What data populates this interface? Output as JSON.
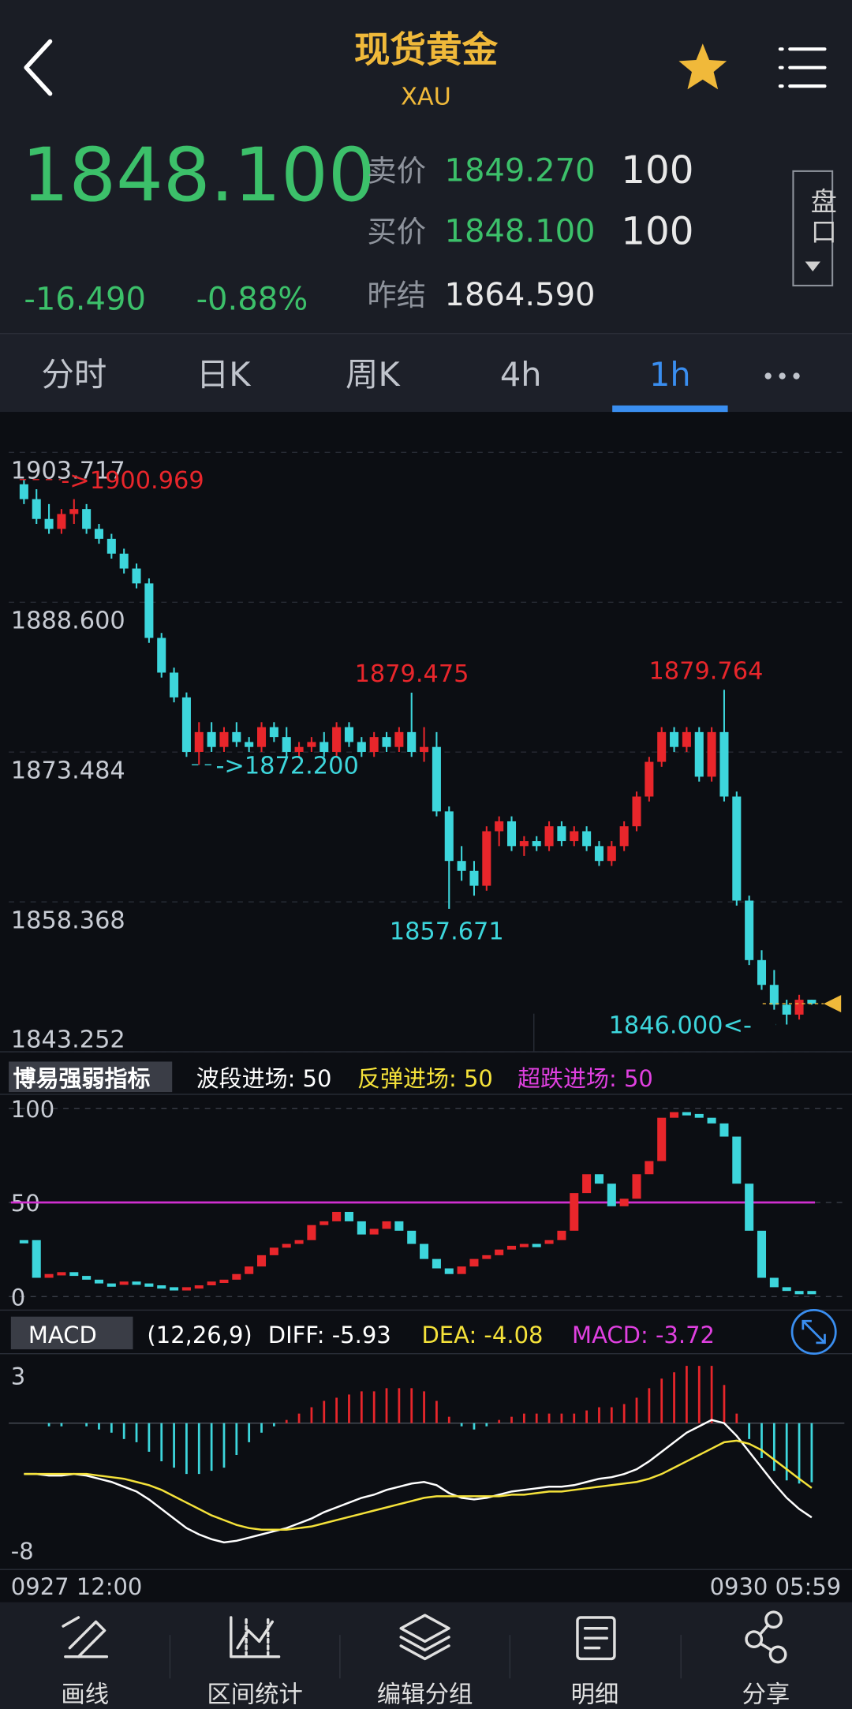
{
  "header": {
    "title": "现货黄金",
    "symbol": "XAU"
  },
  "quote": {
    "price": "1848.100",
    "change": "-16.490",
    "change_pct": "-0.88%",
    "sell_label": "卖价",
    "sell_price": "1849.270",
    "sell_qty": "100",
    "buy_label": "买价",
    "buy_price": "1848.100",
    "buy_qty": "100",
    "prev_label": "昨结",
    "prev_close": "1864.590",
    "panel_button": "盘口"
  },
  "tabs": {
    "items": [
      "分时",
      "日K",
      "周K",
      "4h",
      "1h"
    ],
    "active": 4
  },
  "chart_data": [
    {
      "type": "candlestick",
      "up_color": "#e8262b",
      "down_color": "#3dd6dc",
      "grid": true,
      "ylim": [
        1843.252,
        1907.57
      ],
      "yticks": [
        1903.717,
        {
          "value": 1888.6,
          "label": "1888.600"
        },
        1873.484,
        1858.368,
        1843.252
      ],
      "candles": [
        [
          1900.5,
          1901.0,
          1898.5,
          1899.0
        ],
        [
          1899.0,
          1900.0,
          1896.5,
          1897.0
        ],
        [
          1897.0,
          1898.5,
          1895.5,
          1896.0
        ],
        [
          1896.0,
          1898.0,
          1895.5,
          1897.5
        ],
        [
          1897.5,
          1899.0,
          1896.5,
          1898.0
        ],
        [
          1898.0,
          1898.5,
          1895.5,
          1896.0
        ],
        [
          1896.0,
          1896.5,
          1894.5,
          1895.0
        ],
        [
          1895.0,
          1895.5,
          1893.0,
          1893.5
        ],
        [
          1893.5,
          1894.0,
          1891.5,
          1892.0
        ],
        [
          1892.0,
          1892.5,
          1890.0,
          1890.5
        ],
        [
          1890.5,
          1891.0,
          1884.5,
          1885.0
        ],
        [
          1885.0,
          1885.5,
          1881.0,
          1881.5
        ],
        [
          1881.5,
          1882.0,
          1878.5,
          1879.0
        ],
        [
          1879.0,
          1879.5,
          1873.0,
          1873.5
        ],
        [
          1873.5,
          1876.5,
          1872.2,
          1875.5
        ],
        [
          1875.5,
          1876.5,
          1873.5,
          1874.0
        ],
        [
          1874.0,
          1876.0,
          1873.5,
          1875.5
        ],
        [
          1875.5,
          1876.5,
          1874.0,
          1874.5
        ],
        [
          1874.5,
          1875.0,
          1873.5,
          1874.0
        ],
        [
          1874.0,
          1876.5,
          1873.5,
          1876.0
        ],
        [
          1876.0,
          1876.5,
          1874.5,
          1875.0
        ],
        [
          1875.0,
          1876.0,
          1873.0,
          1873.5
        ],
        [
          1873.5,
          1874.5,
          1873.0,
          1874.0
        ],
        [
          1874.0,
          1875.0,
          1873.5,
          1874.5
        ],
        [
          1874.5,
          1875.5,
          1873.0,
          1873.5
        ],
        [
          1873.5,
          1876.5,
          1873.0,
          1876.0
        ],
        [
          1876.0,
          1876.5,
          1874.0,
          1874.5
        ],
        [
          1874.5,
          1875.0,
          1873.0,
          1873.5
        ],
        [
          1873.5,
          1875.5,
          1873.0,
          1875.0
        ],
        [
          1875.0,
          1875.5,
          1873.5,
          1874.0
        ],
        [
          1874.0,
          1876.0,
          1873.5,
          1875.5
        ],
        [
          1875.5,
          1879.475,
          1873.0,
          1873.5
        ],
        [
          1873.5,
          1876.0,
          1872.5,
          1874.0
        ],
        [
          1874.0,
          1875.5,
          1867.0,
          1867.5
        ],
        [
          1867.5,
          1868.0,
          1857.671,
          1862.5
        ],
        [
          1862.5,
          1864.0,
          1860.5,
          1861.5
        ],
        [
          1861.5,
          1862.5,
          1859.0,
          1860.0
        ],
        [
          1860.0,
          1866.0,
          1859.5,
          1865.5
        ],
        [
          1865.5,
          1867.0,
          1864.0,
          1866.5
        ],
        [
          1866.5,
          1867.0,
          1863.5,
          1864.0
        ],
        [
          1864.0,
          1865.0,
          1863.0,
          1864.5
        ],
        [
          1864.5,
          1865.0,
          1863.5,
          1864.0
        ],
        [
          1864.0,
          1866.5,
          1863.5,
          1866.0
        ],
        [
          1866.0,
          1866.5,
          1864.0,
          1864.5
        ],
        [
          1864.5,
          1866.0,
          1864.0,
          1865.5
        ],
        [
          1865.5,
          1866.0,
          1863.5,
          1864.0
        ],
        [
          1864.0,
          1864.5,
          1862.0,
          1862.5
        ],
        [
          1862.5,
          1864.5,
          1862.0,
          1864.0
        ],
        [
          1864.0,
          1866.5,
          1863.5,
          1866.0
        ],
        [
          1866.0,
          1869.5,
          1865.5,
          1869.0
        ],
        [
          1869.0,
          1873.0,
          1868.5,
          1872.5
        ],
        [
          1872.5,
          1876.0,
          1872.0,
          1875.5
        ],
        [
          1875.5,
          1876.0,
          1873.5,
          1874.0
        ],
        [
          1874.0,
          1876.0,
          1873.5,
          1875.5
        ],
        [
          1875.5,
          1876.0,
          1870.5,
          1871.0
        ],
        [
          1871.0,
          1876.0,
          1870.5,
          1875.5
        ],
        [
          1875.5,
          1879.764,
          1868.5,
          1869.0
        ],
        [
          1869.0,
          1869.5,
          1858.0,
          1858.5
        ],
        [
          1858.5,
          1859.0,
          1852.0,
          1852.5
        ],
        [
          1852.5,
          1853.5,
          1849.5,
          1850.0
        ],
        [
          1850.0,
          1851.5,
          1847.5,
          1848.0
        ],
        [
          1848.0,
          1848.5,
          1846.0,
          1847.0
        ],
        [
          1847.0,
          1849.0,
          1846.5,
          1848.5
        ],
        [
          1848.5,
          1848.5,
          1848.0,
          1848.1
        ]
      ],
      "annotations": [
        {
          "label": "->1900.969",
          "value": 1900.969,
          "color": "#e8262b"
        },
        {
          "label": "1879.475",
          "value": 1879.475,
          "color": "#e8262b"
        },
        {
          "label": "->1872.200",
          "value": 1872.2,
          "color": "#3dd6dc"
        },
        {
          "label": "1857.671",
          "value": 1857.671,
          "color": "#3dd6dc"
        },
        {
          "label": "1879.764",
          "value": 1879.764,
          "color": "#e8262b"
        },
        {
          "label": "1846.000<-",
          "value": 1846.0,
          "color": "#3dd6dc"
        }
      ]
    },
    {
      "type": "indicator-bar",
      "title": "博易强弱指标",
      "up_color": "#e8262b",
      "down_color": "#3dd6dc",
      "legend": [
        {
          "label": "波段进场: 50",
          "color": "#ffffff"
        },
        {
          "label": "反弹进场: 50",
          "color": "#f5e23a"
        },
        {
          "label": "超跌进场: 50",
          "color": "#e040e0"
        }
      ],
      "ref_line": {
        "value": 50,
        "color": "#d030d0"
      },
      "ylim": [
        -6,
        104
      ],
      "yticks": [
        0,
        50,
        100
      ],
      "values": [
        30,
        10,
        12,
        13,
        11,
        9,
        7,
        7,
        8,
        7,
        6,
        5,
        4,
        5,
        6,
        8,
        9,
        12,
        16,
        22,
        26,
        28,
        30,
        38,
        40,
        45,
        40,
        33,
        36,
        40,
        35,
        28,
        20,
        15,
        12,
        16,
        20,
        22,
        25,
        27,
        28,
        28,
        30,
        35,
        55,
        65,
        60,
        48,
        52,
        65,
        72,
        95,
        98,
        97,
        95,
        92,
        85,
        60,
        35,
        10,
        5,
        3,
        3,
        3
      ]
    },
    {
      "type": "macd",
      "title": "MACD",
      "params": "(12,26,9)",
      "ylim": [
        -9,
        4.3
      ],
      "yticks": [
        -8,
        3
      ],
      "categories": [
        "0927 12:00",
        null,
        null,
        null,
        null,
        null,
        null,
        null,
        null,
        null,
        null,
        null,
        null,
        null,
        null,
        null,
        null,
        null,
        null,
        null,
        null,
        null,
        null,
        null,
        null,
        null,
        null,
        null,
        null,
        null,
        null,
        null,
        null,
        null,
        null,
        null,
        null,
        null,
        null,
        null,
        null,
        null,
        null,
        null,
        null,
        null,
        null,
        null,
        null,
        null,
        null,
        null,
        null,
        null,
        null,
        null,
        null,
        null,
        null,
        null,
        null,
        null,
        null,
        "0930 05:59"
      ],
      "series": [
        {
          "name": "DIFF: -5.93",
          "color": "#ffffff",
          "values": [
            -3.2,
            -3.2,
            -3.3,
            -3.3,
            -3.2,
            -3.3,
            -3.5,
            -3.7,
            -4.0,
            -4.3,
            -4.8,
            -5.4,
            -6.0,
            -6.6,
            -7.0,
            -7.3,
            -7.5,
            -7.4,
            -7.2,
            -7.0,
            -6.8,
            -6.6,
            -6.3,
            -6.0,
            -5.6,
            -5.3,
            -5.0,
            -4.7,
            -4.5,
            -4.2,
            -4.0,
            -3.8,
            -3.7,
            -3.9,
            -4.4,
            -4.7,
            -4.8,
            -4.7,
            -4.5,
            -4.3,
            -4.2,
            -4.1,
            -4.0,
            -4.0,
            -3.9,
            -3.7,
            -3.5,
            -3.4,
            -3.2,
            -2.9,
            -2.4,
            -1.8,
            -1.2,
            -0.6,
            -0.2,
            0.2,
            0.0,
            -0.8,
            -1.8,
            -2.8,
            -3.8,
            -4.7,
            -5.4,
            -5.93
          ]
        },
        {
          "name": "DEA: -4.08",
          "color": "#f5e23a",
          "values": [
            -3.2,
            -3.2,
            -3.2,
            -3.2,
            -3.2,
            -3.2,
            -3.3,
            -3.4,
            -3.5,
            -3.7,
            -3.9,
            -4.2,
            -4.6,
            -5.0,
            -5.4,
            -5.8,
            -6.1,
            -6.4,
            -6.6,
            -6.7,
            -6.7,
            -6.7,
            -6.6,
            -6.5,
            -6.3,
            -6.1,
            -5.9,
            -5.7,
            -5.5,
            -5.3,
            -5.1,
            -4.9,
            -4.7,
            -4.6,
            -4.6,
            -4.6,
            -4.6,
            -4.6,
            -4.6,
            -4.5,
            -4.5,
            -4.4,
            -4.3,
            -4.3,
            -4.2,
            -4.1,
            -4.0,
            -3.9,
            -3.8,
            -3.7,
            -3.5,
            -3.2,
            -2.8,
            -2.4,
            -2.0,
            -1.6,
            -1.2,
            -1.1,
            -1.3,
            -1.7,
            -2.3,
            -2.9,
            -3.5,
            -4.08
          ]
        }
      ],
      "histogram": {
        "name": "MACD: -3.72",
        "color": "#e040e0",
        "up_color": "#e8262b",
        "down_color": "#3dd6dc",
        "values": [
          0,
          0,
          -0.2,
          -0.2,
          0,
          -0.2,
          -0.4,
          -0.6,
          -1.0,
          -1.2,
          -1.8,
          -2.4,
          -2.8,
          -3.2,
          -3.2,
          -3.0,
          -2.8,
          -2.0,
          -1.2,
          -0.6,
          -0.2,
          0.2,
          0.6,
          1.0,
          1.4,
          1.6,
          1.8,
          2.0,
          2.0,
          2.2,
          2.2,
          2.2,
          2.0,
          1.4,
          0.4,
          -0.2,
          -0.4,
          -0.2,
          0.2,
          0.4,
          0.6,
          0.6,
          0.6,
          0.6,
          0.6,
          0.8,
          1.0,
          1.0,
          1.2,
          1.6,
          2.2,
          2.8,
          3.2,
          3.6,
          3.6,
          3.6,
          2.4,
          0.6,
          -1.0,
          -2.2,
          -3.0,
          -3.6,
          -3.8,
          -3.72
        ]
      }
    }
  ],
  "footer": [
    "画线",
    "区间统计",
    "编辑分组",
    "明细",
    "分享"
  ]
}
